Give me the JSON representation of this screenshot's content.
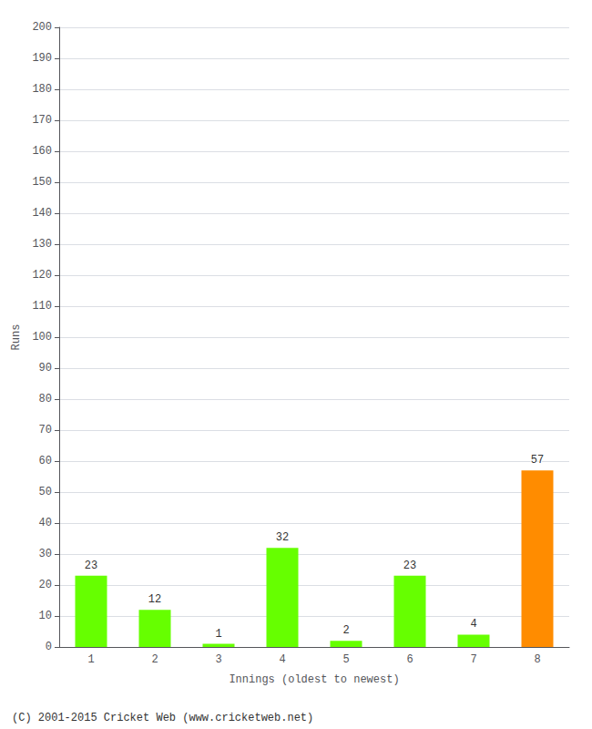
{
  "chart_data": {
    "type": "bar",
    "categories": [
      "1",
      "2",
      "3",
      "4",
      "5",
      "6",
      "7",
      "8"
    ],
    "values": [
      23,
      12,
      1,
      32,
      2,
      23,
      4,
      57
    ],
    "colors": [
      "#66ff00",
      "#66ff00",
      "#66ff00",
      "#66ff00",
      "#66ff00",
      "#66ff00",
      "#66ff00",
      "#ff8c00"
    ],
    "xlabel": "Innings (oldest to newest)",
    "ylabel": "Runs",
    "ylim": [
      0,
      200
    ],
    "yticks": [
      0,
      10,
      20,
      30,
      40,
      50,
      60,
      70,
      80,
      90,
      100,
      110,
      120,
      130,
      140,
      150,
      160,
      170,
      180,
      190,
      200
    ],
    "grid": true,
    "data_labels": true,
    "annotations": [
      "(C) 2001-2015 Cricket Web (www.cricketweb.net)"
    ]
  }
}
